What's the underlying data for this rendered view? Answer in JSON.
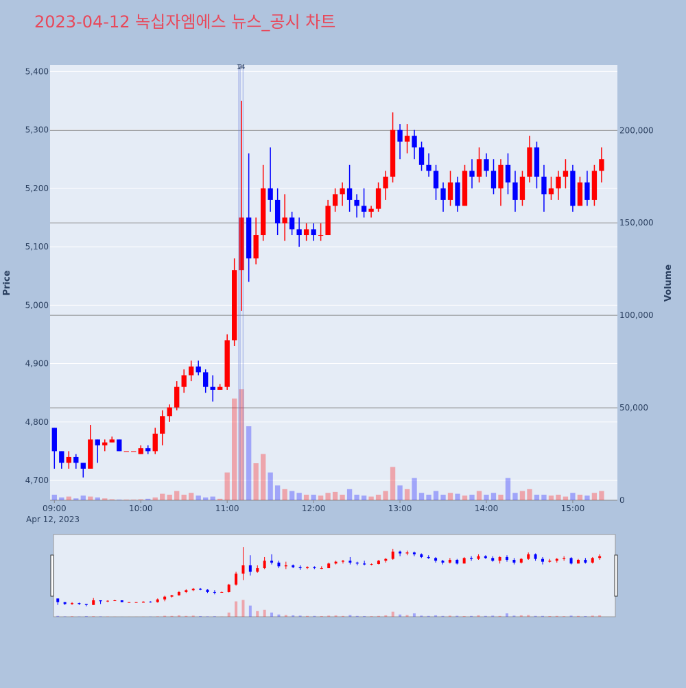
{
  "chart_data": {
    "type": "candlestick",
    "title": "2023-04-12 녹십자엠에스 뉴스_공시 차트",
    "x": [
      "09:00",
      "09:05",
      "09:10",
      "09:15",
      "09:20",
      "09:25",
      "09:30",
      "09:35",
      "09:40",
      "09:45",
      "09:50",
      "09:55",
      "10:00",
      "10:05",
      "10:10",
      "10:15",
      "10:20",
      "10:25",
      "10:30",
      "10:35",
      "10:40",
      "10:45",
      "10:50",
      "10:55",
      "11:00",
      "11:05",
      "11:10",
      "11:15",
      "11:20",
      "11:25",
      "11:30",
      "11:35",
      "11:40",
      "11:45",
      "11:50",
      "11:55",
      "12:00",
      "12:05",
      "12:10",
      "12:15",
      "12:20",
      "12:25",
      "12:30",
      "12:35",
      "12:40",
      "12:45",
      "12:50",
      "12:55",
      "13:00",
      "13:05",
      "13:10",
      "13:15",
      "13:20",
      "13:25",
      "13:30",
      "13:35",
      "13:40",
      "13:45",
      "13:50",
      "13:55",
      "14:00",
      "14:05",
      "14:10",
      "14:15",
      "14:20",
      "14:25",
      "14:30",
      "14:35",
      "14:40",
      "14:45",
      "14:50",
      "14:55",
      "15:00",
      "15:05",
      "15:10",
      "15:15",
      "15:20"
    ],
    "open": [
      4790,
      4750,
      4730,
      4740,
      4730,
      4720,
      4770,
      4760,
      4765,
      4770,
      4750,
      4750,
      4745,
      4755,
      4750,
      4780,
      4810,
      4825,
      4860,
      4880,
      4895,
      4885,
      4860,
      4855,
      4860,
      4940,
      5060,
      5150,
      5080,
      5120,
      5200,
      5180,
      5140,
      5150,
      5130,
      5120,
      5130,
      5120,
      5120,
      5170,
      5190,
      5200,
      5180,
      5170,
      5160,
      5165,
      5200,
      5220,
      5300,
      5280,
      5290,
      5270,
      5240,
      5230,
      5200,
      5180,
      5210,
      5170,
      5230,
      5220,
      5250,
      5230,
      5200,
      5240,
      5210,
      5180,
      5220,
      5270,
      5220,
      5190,
      5200,
      5220,
      5230,
      5170,
      5210,
      5180,
      5230
    ],
    "high": [
      4790,
      4750,
      4750,
      4745,
      4730,
      4795,
      4770,
      4770,
      4775,
      4770,
      4750,
      4750,
      4760,
      4760,
      4790,
      4820,
      4830,
      4870,
      4890,
      4905,
      4905,
      4890,
      4880,
      4865,
      4950,
      5080,
      5350,
      5260,
      5150,
      5240,
      5270,
      5200,
      5190,
      5160,
      5150,
      5140,
      5140,
      5140,
      5180,
      5200,
      5210,
      5240,
      5190,
      5200,
      5170,
      5210,
      5230,
      5330,
      5310,
      5310,
      5300,
      5280,
      5260,
      5240,
      5210,
      5230,
      5220,
      5240,
      5250,
      5270,
      5260,
      5250,
      5250,
      5260,
      5230,
      5230,
      5290,
      5280,
      5240,
      5220,
      5230,
      5250,
      5240,
      5220,
      5230,
      5240,
      5270
    ],
    "low": [
      4720,
      4720,
      4720,
      4720,
      4705,
      4720,
      4730,
      4750,
      4765,
      4750,
      4750,
      4750,
      4745,
      4745,
      4745,
      4760,
      4800,
      4820,
      4850,
      4870,
      4880,
      4850,
      4835,
      4855,
      4855,
      4930,
      4990,
      5040,
      5070,
      5110,
      5160,
      5120,
      5110,
      5120,
      5100,
      5110,
      5110,
      5110,
      5120,
      5160,
      5170,
      5160,
      5150,
      5150,
      5150,
      5160,
      5180,
      5210,
      5250,
      5260,
      5250,
      5230,
      5220,
      5180,
      5160,
      5170,
      5160,
      5170,
      5200,
      5210,
      5220,
      5190,
      5170,
      5190,
      5160,
      5170,
      5210,
      5200,
      5160,
      5180,
      5180,
      5200,
      5160,
      5170,
      5170,
      5170,
      5210
    ],
    "close": [
      4750,
      4730,
      4740,
      4730,
      4720,
      4770,
      4760,
      4765,
      4770,
      4750,
      4750,
      4750,
      4755,
      4750,
      4780,
      4810,
      4825,
      4860,
      4880,
      4895,
      4885,
      4860,
      4855,
      4860,
      4940,
      5060,
      5150,
      5080,
      5120,
      5200,
      5180,
      5140,
      5150,
      5130,
      5120,
      5130,
      5120,
      5120,
      5170,
      5190,
      5200,
      5180,
      5170,
      5160,
      5165,
      5200,
      5220,
      5300,
      5280,
      5290,
      5270,
      5240,
      5230,
      5200,
      5180,
      5210,
      5170,
      5230,
      5220,
      5250,
      5230,
      5200,
      5240,
      5210,
      5180,
      5220,
      5270,
      5220,
      5190,
      5200,
      5220,
      5230,
      5170,
      5210,
      5180,
      5230,
      5250
    ],
    "volume": [
      3000,
      1500,
      2000,
      1000,
      2500,
      2000,
      1500,
      1000,
      500,
      300,
      300,
      300,
      500,
      800,
      1500,
      3500,
      3000,
      5000,
      3000,
      4000,
      2500,
      1500,
      2000,
      800,
      15000,
      55000,
      60000,
      40000,
      20000,
      25000,
      15000,
      8000,
      6000,
      5000,
      4000,
      3000,
      3000,
      2500,
      4000,
      4500,
      3000,
      6000,
      3000,
      2500,
      2000,
      3000,
      5000,
      18000,
      8000,
      6000,
      12000,
      4000,
      3000,
      5000,
      3000,
      4000,
      3500,
      2500,
      3000,
      5000,
      3000,
      4000,
      3000,
      12000,
      4000,
      5000,
      6000,
      3000,
      3000,
      2500,
      3000,
      2000,
      4000,
      3000,
      2500,
      4000,
      5000
    ],
    "colors": {
      "up": "#ff0000",
      "down": "#0000ff"
    },
    "xlim": [
      "08:57",
      "15:31"
    ],
    "xticks": [
      "09:00",
      "10:00",
      "11:00",
      "12:00",
      "13:00",
      "14:00",
      "15:00"
    ],
    "x_date_label": "Apr 12, 2023",
    "ylim": [
      4666,
      5411
    ],
    "yticks": [
      {
        "value": 4700,
        "label": "4,700"
      },
      {
        "value": 4800,
        "label": "4,800"
      },
      {
        "value": 4900,
        "label": "4,900"
      },
      {
        "value": 5000,
        "label": "5,000"
      },
      {
        "value": 5100,
        "label": "5,100"
      },
      {
        "value": 5200,
        "label": "5,200"
      },
      {
        "value": 5300,
        "label": "5,300"
      },
      {
        "value": 5400,
        "label": "5,400"
      }
    ],
    "y2lim": [
      0,
      235300
    ],
    "y2ticks": [
      0,
      {
        "value": 50000,
        "label": "50,000"
      },
      {
        "value": 100000,
        "label": "100,000"
      },
      {
        "value": 150000,
        "label": "150,000"
      },
      {
        "value": 200000,
        "label": "200,000"
      }
    ],
    "ylabel": "Price",
    "y2label": "Volume",
    "annotations": [
      {
        "x": "11:08",
        "text": "1"
      },
      {
        "x": "11:09",
        "text": "2"
      },
      {
        "x": "11:11",
        "text": "4"
      }
    ],
    "rangeslider": true
  }
}
